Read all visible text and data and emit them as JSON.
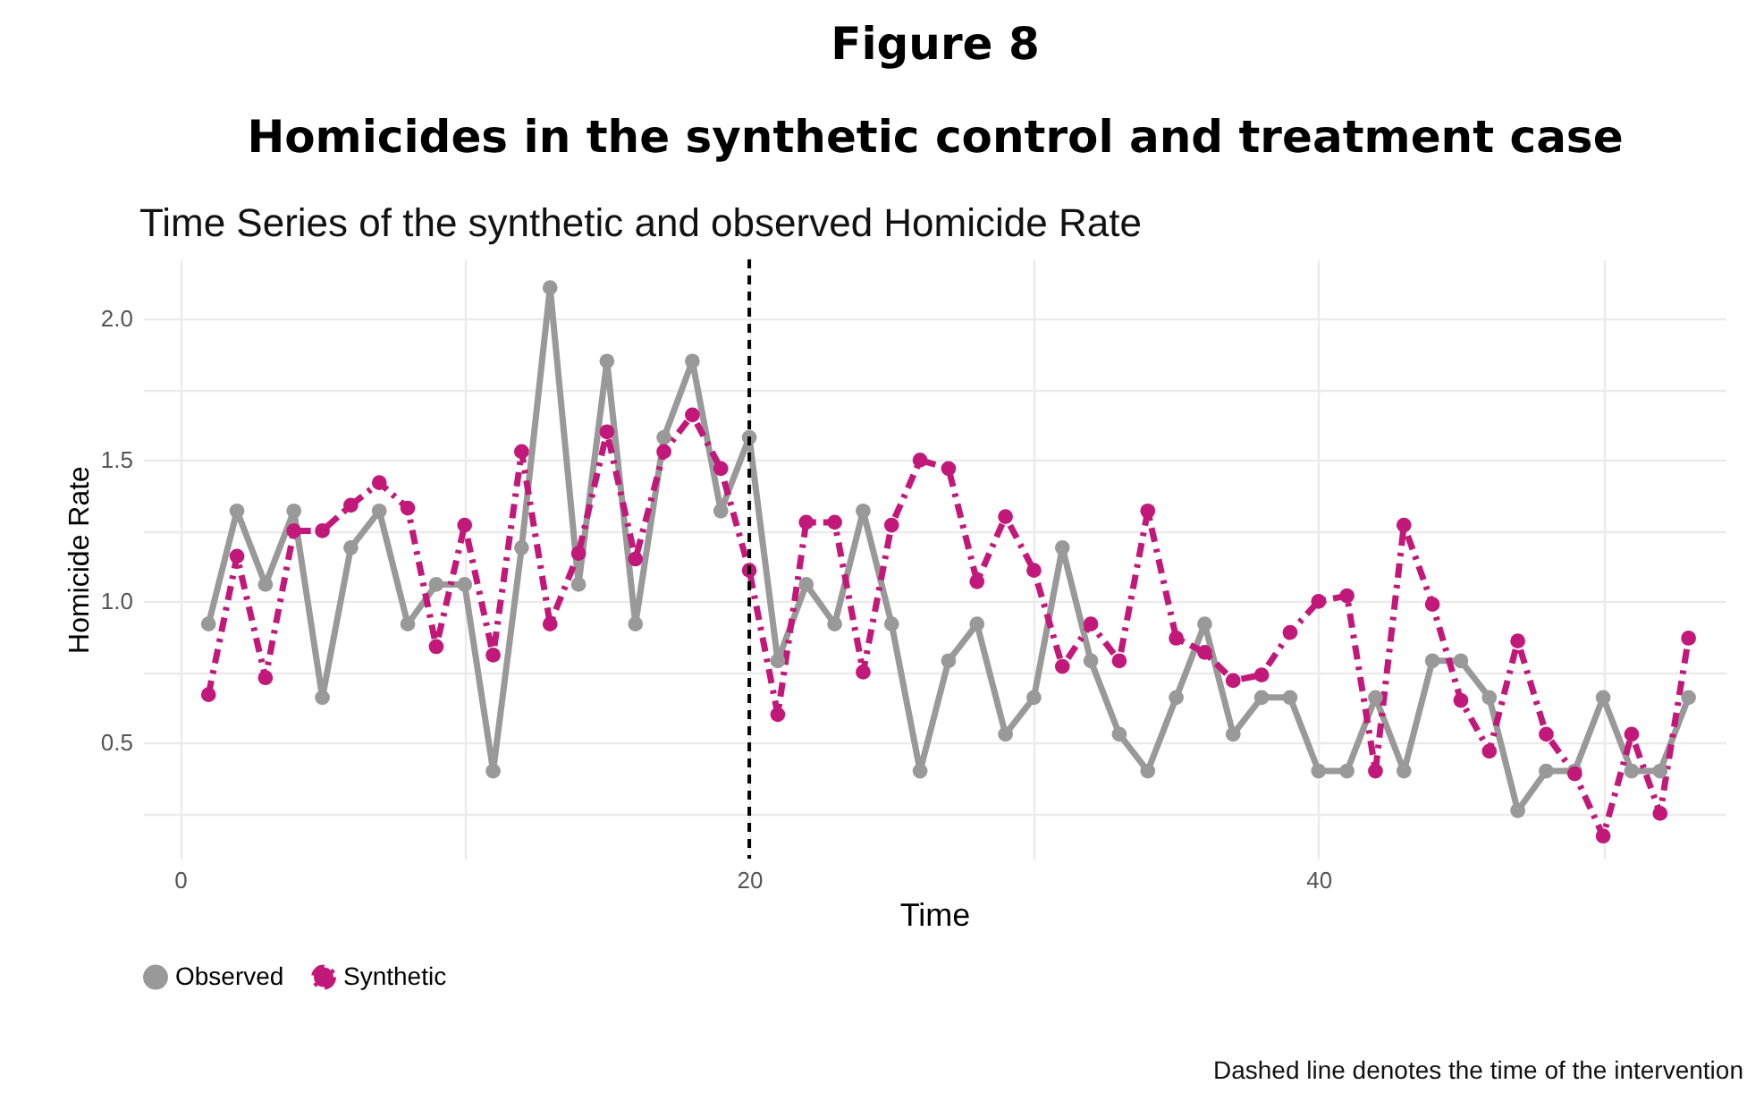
{
  "chart_data": {
    "type": "line",
    "title": "Figure 8",
    "subtitle": "Homicides in the synthetic control and treatment case",
    "annotations": [
      "Time Series of the synthetic and observed Homicide Rate",
      "Dashed line denotes the time of the intervention"
    ],
    "xlabel": "Time",
    "ylabel": "Homicide Rate",
    "x": [
      1,
      2,
      3,
      4,
      5,
      6,
      7,
      8,
      9,
      10,
      11,
      12,
      13,
      14,
      15,
      16,
      17,
      18,
      19,
      20,
      21,
      22,
      23,
      24,
      25,
      26,
      27,
      28,
      29,
      30,
      31,
      32,
      33,
      34,
      35,
      36,
      37,
      38,
      39,
      40,
      41,
      42,
      43,
      44,
      45,
      46,
      47,
      48,
      49,
      50,
      51,
      52,
      53
    ],
    "series": [
      {
        "name": "Observed",
        "color": "#999999",
        "line_style": "solid",
        "values": [
          0.92,
          1.32,
          1.06,
          1.32,
          0.66,
          1.19,
          1.32,
          0.92,
          1.06,
          1.06,
          0.4,
          1.19,
          2.11,
          1.06,
          1.85,
          0.92,
          1.58,
          1.85,
          1.32,
          1.58,
          0.79,
          1.06,
          0.92,
          1.32,
          0.92,
          0.4,
          0.79,
          0.92,
          0.53,
          0.66,
          1.19,
          0.79,
          0.53,
          0.4,
          0.66,
          0.92,
          0.53,
          0.66,
          0.66,
          0.4,
          0.4,
          0.66,
          0.4,
          0.79,
          0.79,
          0.66,
          0.26,
          0.4,
          0.4,
          0.66,
          0.4,
          0.4,
          0.66
        ]
      },
      {
        "name": "Synthetic",
        "color": "#c2187a",
        "line_style": "dashed",
        "values": [
          0.67,
          1.16,
          0.73,
          1.25,
          1.25,
          1.34,
          1.42,
          1.33,
          0.84,
          1.27,
          0.81,
          1.53,
          0.92,
          1.17,
          1.6,
          1.15,
          1.53,
          1.66,
          1.47,
          1.11,
          0.6,
          1.28,
          1.28,
          0.75,
          1.27,
          1.5,
          1.47,
          1.07,
          1.3,
          1.11,
          0.77,
          0.92,
          0.79,
          1.32,
          0.87,
          0.82,
          0.72,
          0.74,
          0.89,
          1.0,
          1.02,
          0.4,
          1.27,
          0.99,
          0.65,
          0.47,
          0.86,
          0.53,
          0.39,
          0.17,
          0.53,
          0.25,
          0.87
        ]
      }
    ],
    "xlim": [
      -1.3,
      54.3
    ],
    "ylim": [
      0.09,
      2.21
    ],
    "xticks": [
      0,
      {
        "value": 10,
        "label": null
      },
      20,
      {
        "value": 30,
        "label": null
      },
      40,
      {
        "value": 50,
        "label": null
      }
    ],
    "yticks": [
      {
        "value": 0.25,
        "label": null
      },
      {
        "value": 0.5,
        "label": "0.5"
      },
      {
        "value": 0.75,
        "label": null
      },
      {
        "value": 1.0,
        "label": "1.0"
      },
      {
        "value": 1.25,
        "label": null
      },
      {
        "value": 1.5,
        "label": "1.5"
      },
      {
        "value": 1.75,
        "label": null
      },
      {
        "value": 2.0,
        "label": "2.0"
      }
    ],
    "ref_lines": [
      {
        "axis": "x",
        "value": 20,
        "color": "#000000",
        "line_style": "dashed"
      }
    ],
    "grid": true,
    "legend": "bottom",
    "marker": "circle"
  }
}
